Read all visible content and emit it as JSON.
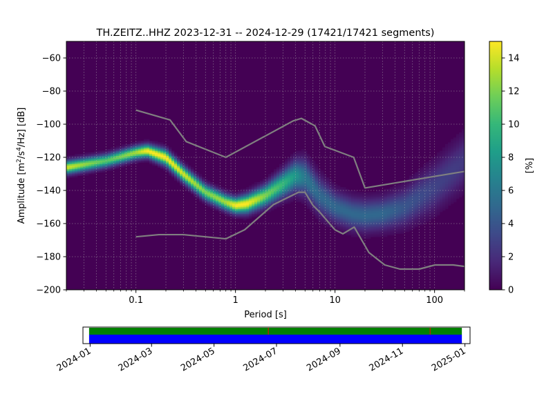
{
  "chart_data": [
    {
      "type": "heatmap",
      "title": "TH.ZEITZ..HHZ   2023-12-31 -- 2024-12-29  (17421/17421 segments)",
      "xlabel": "Period [s]",
      "ylabel_main": "Amplitude [m",
      "ylabel_sup1": "2",
      "ylabel_mid": "/s",
      "ylabel_sup2": "4",
      "ylabel_end": "/Hz] [dB]",
      "xscale": "log",
      "xlim": [
        0.02,
        200
      ],
      "ylim": [
        -200,
        -50
      ],
      "x_ticks": [
        {
          "value": 0.1,
          "label": "0.1"
        },
        {
          "value": 1,
          "label": "1"
        },
        {
          "value": 10,
          "label": "10"
        },
        {
          "value": 100,
          "label": "100"
        }
      ],
      "y_ticks": [
        {
          "value": -60,
          "label": "−60"
        },
        {
          "value": -80,
          "label": "−80"
        },
        {
          "value": -100,
          "label": "−100"
        },
        {
          "value": -120,
          "label": "−120"
        },
        {
          "value": -140,
          "label": "−140"
        },
        {
          "value": -160,
          "label": "−160"
        },
        {
          "value": -180,
          "label": "−180"
        },
        {
          "value": -200,
          "label": "−200"
        }
      ],
      "grid": true,
      "colormap": [
        "#440154",
        "#482878",
        "#3e4989",
        "#31688e",
        "#26828e",
        "#1f9e89",
        "#35b779",
        "#6ece58",
        "#b5de2b",
        "#fde725"
      ],
      "colorbar": {
        "label": "[%]",
        "range": [
          0,
          15
        ],
        "ticks": [
          {
            "value": 0,
            "label": "0"
          },
          {
            "value": 2,
            "label": "2"
          },
          {
            "value": 4,
            "label": "4"
          },
          {
            "value": 6,
            "label": "6"
          },
          {
            "value": 8,
            "label": "8"
          },
          {
            "value": 10,
            "label": "10"
          },
          {
            "value": 12,
            "label": "12"
          },
          {
            "value": 14,
            "label": "14"
          }
        ]
      },
      "density_ridge": {
        "periods": [
          0.02,
          0.05,
          0.1,
          0.13,
          0.2,
          0.3,
          0.5,
          0.8,
          1.0,
          1.3,
          2.0,
          3.0,
          4.0,
          5.0,
          7.0,
          10,
          15,
          20,
          30,
          50,
          100,
          200
        ],
        "center_db": [
          -126,
          -122,
          -117,
          -116,
          -120,
          -130,
          -141,
          -147,
          -149,
          -148,
          -143,
          -136,
          -131,
          -132,
          -143,
          -150,
          -154,
          -155,
          -154,
          -150,
          -138,
          -122
        ],
        "spread_db": [
          2.5,
          2.5,
          2.5,
          2.5,
          3,
          3,
          3,
          3,
          3,
          3.5,
          4,
          5,
          6,
          7,
          7,
          6,
          6,
          6,
          6,
          7,
          9,
          10
        ],
        "peak_percent": [
          14,
          11,
          13,
          15,
          15,
          14,
          12,
          13,
          15,
          15,
          12,
          10,
          8,
          6,
          5,
          5,
          5,
          5,
          5,
          4,
          3,
          2.5
        ]
      },
      "noise_models": [
        {
          "periods": [
            0.1,
            0.17,
            0.3,
            0.8,
            1.24,
            2.4,
            4.3,
            5.0,
            6.0,
            7.0,
            10,
            12,
            15.6,
            21.9,
            31.6,
            45,
            70,
            101,
            154,
            200
          ],
          "values_db": [
            -168,
            -166.7,
            -166.7,
            -169.2,
            -163.7,
            -148.6,
            -141.1,
            -141.1,
            -149,
            -153,
            -163.8,
            -166.2,
            -162.1,
            -177.5,
            -185,
            -187.5,
            -187.5,
            -185,
            -185,
            -185.9
          ]
        },
        {
          "periods": [
            0.1,
            0.22,
            0.32,
            0.8,
            3.8,
            4.6,
            6.3,
            7.9,
            15.4,
            20,
            200
          ],
          "values_db": [
            -91.5,
            -97.4,
            -110.5,
            -120,
            -98,
            -96.5,
            -101,
            -113.5,
            -120,
            -138.5,
            -128.5
          ]
        }
      ]
    },
    {
      "type": "timeline",
      "date_ticks": [
        "2024-01",
        "2024-03",
        "2024-05",
        "2024-07",
        "2024-09",
        "2024-11",
        "2025-01"
      ],
      "date_range": [
        "2023-12-31",
        "2024-12-29"
      ],
      "rows": [
        {
          "color": "#008000"
        },
        {
          "color": "#0000ff"
        }
      ],
      "gap_markers": [
        "2024-06-23",
        "2024-11-28"
      ],
      "gap_color": "#ff0000"
    }
  ]
}
